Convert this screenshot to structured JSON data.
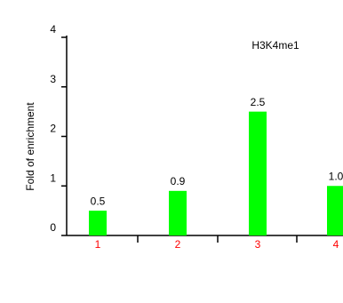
{
  "chart_data": {
    "type": "bar",
    "annotation": "H3K4me1",
    "y_label": "Fold of enrichment",
    "categories": [
      "1",
      "2",
      "3",
      "4"
    ],
    "values": [
      0.5,
      0.9,
      2.5,
      1.0
    ],
    "value_labels": [
      "0.5",
      "0.9",
      "2.5",
      "1.0"
    ],
    "color": "#00ff00",
    "category_color": "#ff0000",
    "ylim": [
      0,
      4
    ],
    "yticks": [
      0,
      1,
      2,
      3,
      4
    ],
    "grid": false
  }
}
